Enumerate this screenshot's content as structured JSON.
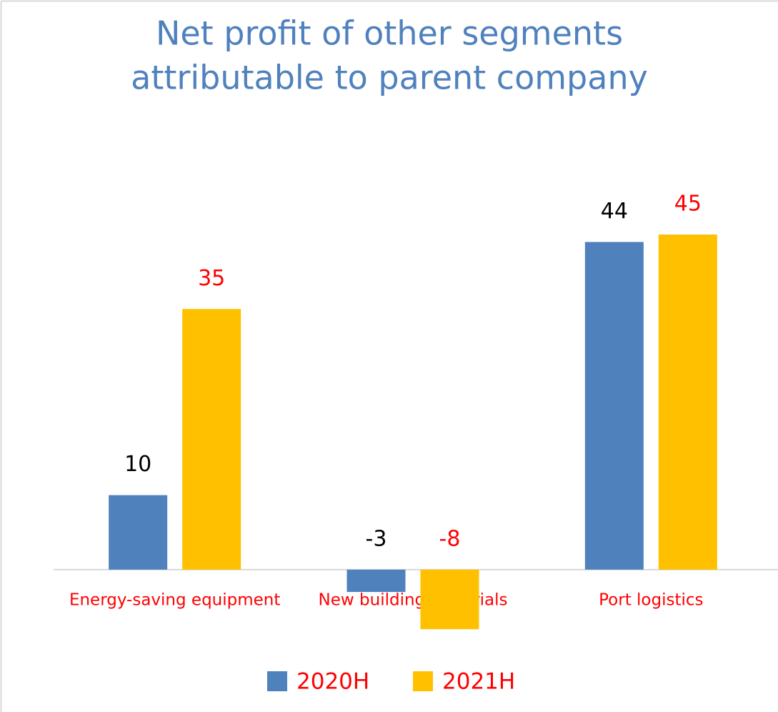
{
  "chart_data": {
    "type": "bar",
    "title": [
      "Net profit of other segments",
      "attributable to parent company"
    ],
    "categories": [
      "Energy-saving equipment",
      "New building materials",
      "Port logistics"
    ],
    "series": [
      {
        "name": "2020H",
        "color": "#4f81bd",
        "label_color": "#000000",
        "values": [
          10,
          -3,
          44
        ]
      },
      {
        "name": "2021H",
        "color": "#ffc000",
        "label_color": "#ff0000",
        "values": [
          35,
          -8,
          45
        ]
      }
    ],
    "ylim": [
      -10,
      50
    ],
    "title_color": "#4f81bd",
    "category_label_color": "#ff0000",
    "legend_text_color": "#ff0000",
    "legend": "bottom"
  }
}
